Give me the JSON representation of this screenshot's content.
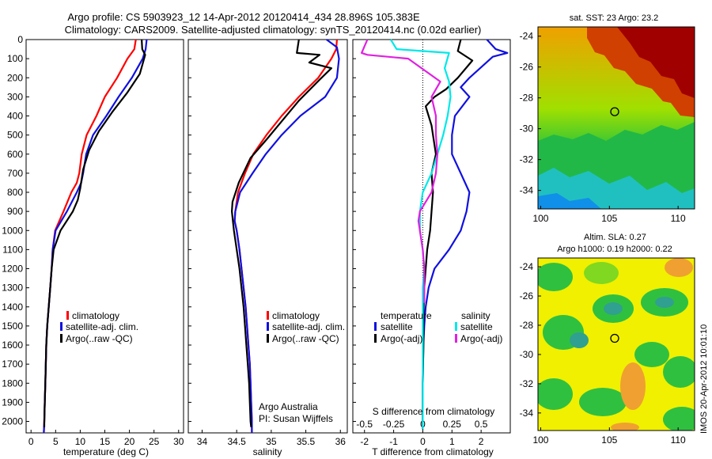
{
  "header": {
    "line1": "Argo profile: CS 5903923_12 14-Apr-2012 20120414_434 28.896S 105.383E",
    "line2": "Climatology: CARS2009. Satellite-adjusted climatology: synTS_20120414.nc (0.02d earlier)"
  },
  "colors": {
    "climatology": "#ff0000",
    "satellite": "#1010e0",
    "argo": "#000000",
    "satellite_salinity": "#00e8e8",
    "argo_salinity_adj": "#e020e0"
  },
  "chart_data": [
    {
      "type": "line",
      "name": "temperature-panel",
      "xlabel": "temperature (deg C)",
      "xlim": [
        -1,
        31
      ],
      "xticks": [
        0,
        5,
        10,
        15,
        20,
        25,
        30
      ],
      "ylim": [
        2060,
        0
      ],
      "yticks": [
        0,
        100,
        200,
        300,
        400,
        500,
        600,
        700,
        800,
        900,
        1000,
        1100,
        1200,
        1300,
        1400,
        1500,
        1600,
        1700,
        1800,
        1900,
        2000
      ],
      "legend": [
        "climatology",
        "satellite-adj. clim.",
        "Argo(..raw -QC)"
      ],
      "series": [
        {
          "name": "climatology",
          "color_key": "climatology",
          "x": [
            21.3,
            21.0,
            19.6,
            17.5,
            15.0,
            13.3,
            11.3,
            10.3,
            9.8,
            9.3,
            8.2,
            6.6,
            4.9,
            4.4,
            4.2,
            3.9,
            3.6,
            3.3,
            3.1,
            3.0,
            2.9,
            2.8,
            2.7,
            2.6
          ],
          "y": [
            0,
            50,
            100,
            200,
            300,
            400,
            500,
            600,
            700,
            750,
            800,
            900,
            1000,
            1100,
            1200,
            1300,
            1400,
            1500,
            1600,
            1700,
            1800,
            1900,
            2000,
            2060
          ]
        },
        {
          "name": "satellite-adj. clim.",
          "color_key": "satellite",
          "x": [
            23.5,
            23.3,
            22.7,
            20.5,
            17.8,
            15.3,
            12.6,
            11.2,
            10.6,
            10.2,
            9.3,
            7.3,
            5.0,
            4.4,
            4.2,
            3.9,
            3.6,
            3.3,
            3.1,
            3.0,
            2.9,
            2.8,
            2.7,
            2.6
          ],
          "y": [
            0,
            50,
            100,
            200,
            300,
            400,
            500,
            600,
            700,
            750,
            800,
            900,
            1000,
            1100,
            1200,
            1300,
            1400,
            1500,
            1600,
            1700,
            1800,
            1900,
            2000,
            2060
          ]
        },
        {
          "name": "Argo(..raw -QC)",
          "color_key": "argo",
          "x": [
            22.5,
            22.6,
            23.2,
            22.1,
            19.5,
            16.5,
            13.8,
            11.8,
            10.6,
            10.0,
            9.5,
            8.5,
            6.0,
            4.6,
            4.2,
            3.9,
            3.6,
            3.3,
            3.1,
            3.0,
            2.9,
            2.8,
            2.7,
            2.7
          ],
          "y": [
            0,
            50,
            80,
            180,
            280,
            380,
            480,
            580,
            680,
            780,
            840,
            900,
            1000,
            1100,
            1200,
            1300,
            1400,
            1500,
            1600,
            1700,
            1800,
            1900,
            2000,
            2030
          ]
        }
      ]
    },
    {
      "type": "line",
      "name": "salinity-panel",
      "xlabel": "salinity",
      "xlim": [
        33.8,
        36.1
      ],
      "xticks": [
        34,
        34.5,
        35,
        35.5,
        36
      ],
      "xtick_labels": [
        "34",
        "34.5",
        "35",
        "35.5",
        "36"
      ],
      "ylim": [
        2060,
        0
      ],
      "legend": [
        "climatology",
        "satellite-adj. clim.",
        "Argo(..raw -QC)"
      ],
      "annotations": [
        "Argo Australia",
        "PI: Susan Wijffels"
      ],
      "series": [
        {
          "name": "climatology",
          "color_key": "climatology",
          "x": [
            35.95,
            35.94,
            35.87,
            35.68,
            35.4,
            35.15,
            34.93,
            34.74,
            34.62,
            34.52,
            34.48,
            34.47,
            34.5,
            34.54,
            34.57,
            34.6,
            34.63,
            34.65,
            34.67,
            34.69,
            34.7,
            34.71,
            34.72,
            34.72
          ],
          "y": [
            0,
            50,
            100,
            200,
            300,
            400,
            500,
            600,
            700,
            800,
            900,
            950,
            1000,
            1100,
            1200,
            1300,
            1400,
            1500,
            1600,
            1700,
            1800,
            1900,
            2000,
            2060
          ]
        },
        {
          "name": "satellite-adj. clim.",
          "color_key": "satellite",
          "x": [
            35.8,
            35.95,
            35.98,
            35.95,
            35.78,
            35.42,
            35.15,
            34.92,
            34.73,
            34.55,
            34.48,
            34.47,
            34.5,
            34.54,
            34.57,
            34.6,
            34.63,
            34.65,
            34.67,
            34.69,
            34.7,
            34.71,
            34.72,
            34.72
          ],
          "y": [
            0,
            40,
            100,
            200,
            300,
            400,
            500,
            600,
            700,
            800,
            900,
            950,
            1000,
            1100,
            1200,
            1300,
            1400,
            1500,
            1600,
            1700,
            1800,
            1900,
            2000,
            2060
          ]
        },
        {
          "name": "Argo(..raw -QC)",
          "color_key": "argo",
          "x": [
            35.4,
            35.37,
            35.7,
            35.55,
            35.87,
            35.7,
            35.4,
            35.17,
            34.94,
            34.7,
            34.53,
            34.44,
            34.43,
            34.46,
            34.5,
            34.54,
            34.57,
            34.6,
            34.62,
            34.64,
            34.66,
            34.68,
            34.69,
            34.7,
            34.71
          ],
          "y": [
            0,
            70,
            80,
            120,
            150,
            210,
            320,
            420,
            520,
            620,
            750,
            850,
            900,
            1000,
            1100,
            1200,
            1300,
            1400,
            1500,
            1600,
            1700,
            1800,
            1900,
            2000,
            2030
          ]
        }
      ]
    },
    {
      "type": "line",
      "name": "difference-panel",
      "xlabel": "T difference from climatology",
      "xlabel_top": "S difference from climatology",
      "xlim": [
        -2.4,
        3.0
      ],
      "xticks": [
        -2,
        -1,
        0,
        1,
        2
      ],
      "xticks_top": [
        -0.5,
        -0.25,
        0,
        0.25,
        0.5
      ],
      "xtick_labels_top": [
        "-0.5",
        "-0.25",
        "0",
        "0.25",
        "0.5"
      ],
      "ylim": [
        2060,
        0
      ],
      "legend_headers": [
        "temperature",
        "salinity"
      ],
      "legend": [
        "satellite",
        "Argo(-adj)",
        "satellite",
        "Argo(-adj)"
      ],
      "series": [
        {
          "name": "T satellite",
          "color_key": "satellite",
          "x": [
            2.2,
            2.5,
            2.9,
            2.4,
            1.6,
            1.3,
            1.6,
            1.1,
            1.0,
            1.0,
            1.3,
            1.6,
            1.5,
            1.3,
            0.9,
            0.4,
            0.2,
            0.1,
            0.05,
            0.02,
            0.0,
            0.0
          ],
          "y": [
            0,
            50,
            70,
            90,
            200,
            250,
            300,
            400,
            500,
            600,
            700,
            800,
            900,
            1000,
            1100,
            1200,
            1300,
            1400,
            1500,
            1600,
            1800,
            2040
          ]
        },
        {
          "name": "T Argo(-adj)",
          "color_key": "argo",
          "x": [
            1.3,
            1.2,
            1.7,
            1.2,
            0.8,
            0.4,
            0.1,
            0.2,
            0.3,
            0.35,
            0.45,
            0.3,
            0.35,
            0.3,
            0.25,
            0.15,
            0.1,
            0.05,
            0.03,
            0.02,
            0.0,
            0.0
          ],
          "y": [
            0,
            60,
            110,
            200,
            260,
            300,
            350,
            400,
            450,
            500,
            600,
            700,
            800,
            900,
            1000,
            1100,
            1200,
            1300,
            1400,
            1600,
            1800,
            2040
          ]
        },
        {
          "name": "S satellite",
          "color_key": "satellite_salinity",
          "x": [
            -1.1,
            -0.9,
            0.9,
            0.75,
            0.9,
            0.95,
            0.85,
            0.7,
            0.5,
            0.3,
            0.0,
            -0.1,
            -0.1,
            0.0,
            0.05,
            0.0,
            0.0,
            0.0
          ],
          "y": [
            0,
            50,
            70,
            150,
            220,
            300,
            400,
            500,
            600,
            700,
            800,
            900,
            1000,
            1100,
            1200,
            1300,
            1600,
            2040
          ]
        },
        {
          "name": "S Argo(-adj)",
          "color_key": "argo_salinity_adj",
          "x": [
            -1.9,
            -2.1,
            -1.9,
            -0.5,
            0.6,
            0.3,
            0.45,
            0.45,
            0.5,
            0.45,
            0.3,
            -0.1,
            -0.15,
            0.0,
            0.05,
            0.05,
            0.05
          ],
          "y": [
            0,
            70,
            80,
            100,
            220,
            300,
            400,
            500,
            600,
            700,
            800,
            900,
            950,
            1100,
            1200,
            1300,
            1380
          ]
        }
      ]
    },
    {
      "type": "heatmap",
      "name": "sst-map",
      "title": "sat. SST: 23 Argo: 23.2",
      "xticks": [
        100,
        105,
        110
      ],
      "yticks": [
        -24,
        -26,
        -28,
        -30,
        -32,
        -34
      ],
      "xlim": [
        99.8,
        111.2
      ],
      "ylim": [
        -35.2,
        -23.4
      ],
      "marker": {
        "lon": 105.383,
        "lat": -28.896
      }
    },
    {
      "type": "heatmap",
      "name": "sla-map",
      "title": "Altim. SLA: 0.27",
      "subtitle": "Argo h1000: 0.19 h2000: 0.22",
      "xticks": [
        100,
        105,
        110
      ],
      "yticks": [
        -24,
        -26,
        -28,
        -30,
        -32,
        -34
      ],
      "xlim": [
        99.8,
        111.2
      ],
      "ylim": [
        -35.2,
        -23.4
      ],
      "marker": {
        "lon": 105.383,
        "lat": -28.896
      }
    }
  ],
  "footer": {
    "stamp": "IMOS 20-Apr-2012 10:01:10"
  }
}
